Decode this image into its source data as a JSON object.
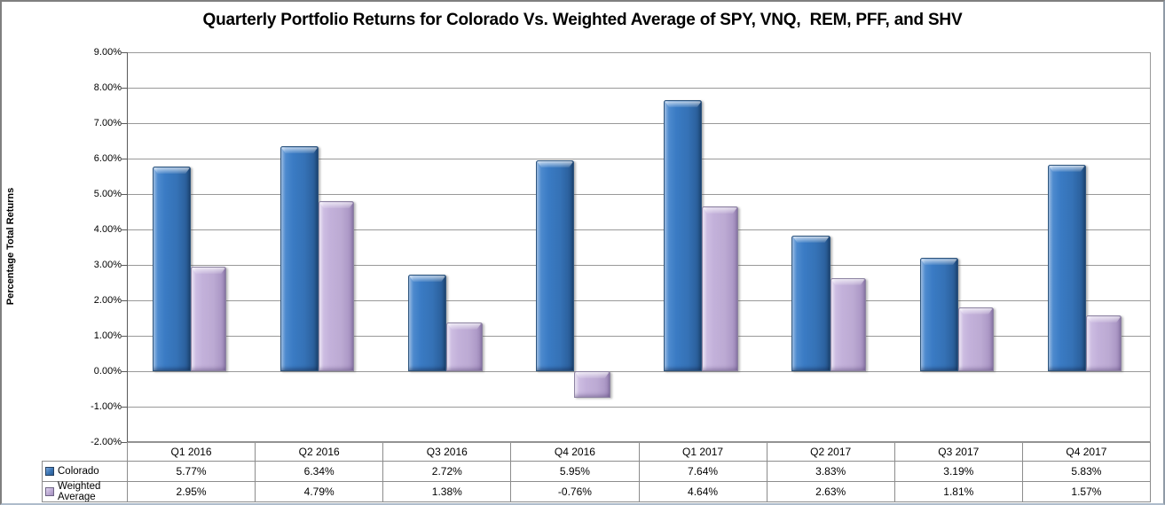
{
  "chart_data": {
    "type": "bar",
    "title": "Quarterly Portfolio Returns for Colorado Vs. Weighted Average of SPY, VNQ,  REM, PFF, and SHV",
    "xlabel": "",
    "ylabel": "Percentage Total Returns",
    "categories": [
      "Q1 2016",
      "Q2 2016",
      "Q3 2016",
      "Q4 2016",
      "Q1 2017",
      "Q2 2017",
      "Q3 2017",
      "Q4 2017"
    ],
    "series": [
      {
        "name": "Colorado",
        "color": "#3A7BC4",
        "values": [
          5.77,
          6.34,
          2.72,
          5.95,
          7.64,
          3.83,
          3.19,
          5.83
        ],
        "labels": [
          "5.77%",
          "6.34%",
          "2.72%",
          "5.95%",
          "7.64%",
          "3.83%",
          "3.19%",
          "5.83%"
        ]
      },
      {
        "name": "Weighted Average",
        "color": "#C3B1DA",
        "values": [
          2.95,
          4.79,
          1.38,
          -0.76,
          4.64,
          2.63,
          1.81,
          1.57
        ],
        "labels": [
          "2.95%",
          "4.79%",
          "1.38%",
          "-0.76%",
          "4.64%",
          "2.63%",
          "1.81%",
          "1.57%"
        ]
      }
    ],
    "ylim": [
      -2,
      9
    ],
    "ytick_step": 1,
    "ytick_labels": [
      "9.00%",
      "8.00%",
      "7.00%",
      "6.00%",
      "5.00%",
      "4.00%",
      "3.00%",
      "2.00%",
      "1.00%",
      "0.00%",
      "-1.00%",
      "-2.00%"
    ],
    "grid": true,
    "gridline_color": "#999999",
    "axis_color": "#595959",
    "legend_position": "data-table-left"
  }
}
